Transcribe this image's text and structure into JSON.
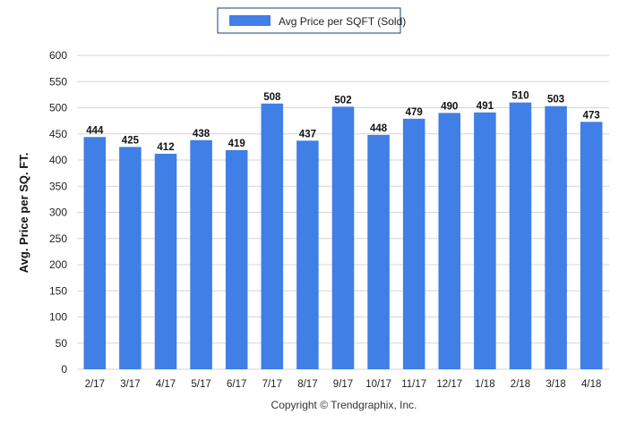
{
  "chart_data": {
    "type": "bar",
    "legend": {
      "position": "top-center"
    },
    "categories": [
      "2/17",
      "3/17",
      "4/17",
      "5/17",
      "6/17",
      "7/17",
      "8/17",
      "9/17",
      "10/17",
      "11/17",
      "12/17",
      "1/18",
      "2/18",
      "3/18",
      "4/18"
    ],
    "series": [
      {
        "name": "Avg Price per SQFT (Sold)",
        "color": "#3f7fe6",
        "values": [
          444,
          425,
          412,
          438,
          419,
          508,
          437,
          502,
          448,
          479,
          490,
          491,
          510,
          503,
          473
        ]
      }
    ],
    "ylabel": "Avg. Price per SQ. FT.",
    "xlabel": "",
    "ylim": [
      0,
      600
    ],
    "yticks": [
      0,
      50,
      100,
      150,
      200,
      250,
      300,
      350,
      400,
      450,
      500,
      550,
      600
    ],
    "grid": true
  },
  "footer": {
    "copyright": "Copyright © Trendgraphix, Inc."
  }
}
